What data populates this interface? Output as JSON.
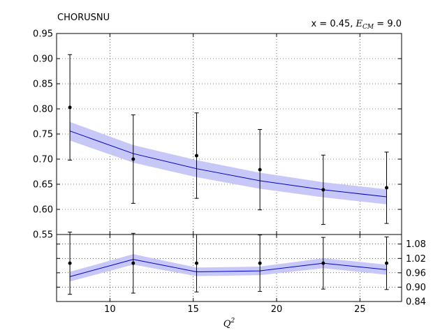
{
  "chart_data": [
    {
      "panel": "main",
      "type": "line",
      "title_left": "CHORUSNU",
      "title_right_text": "x = 0.45, ",
      "title_right_math": "E",
      "title_right_math_sub": "CM",
      "title_right_tail": " = 9.0",
      "xlabel": "Q",
      "xlabel_sup": "2",
      "xlim": [
        6.8,
        27.5
      ],
      "ylim": [
        0.55,
        0.95
      ],
      "xticks": [
        10,
        15,
        20,
        25
      ],
      "yticks": [
        0.55,
        0.6,
        0.65,
        0.7,
        0.75,
        0.8,
        0.85,
        0.9,
        0.95
      ],
      "yticklabels": [
        "0.55",
        "0.60",
        "0.65",
        "0.70",
        "0.75",
        "0.80",
        "0.85",
        "0.90",
        "0.95"
      ],
      "grid": true,
      "band_color": "#c8c8f8",
      "line_color": "#0000cc",
      "point_color": "#000000",
      "x": [
        7.6,
        11.4,
        15.2,
        19.0,
        22.8,
        26.6
      ],
      "data": [
        0.803,
        0.7,
        0.707,
        0.679,
        0.639,
        0.643
      ],
      "data_err": [
        0.105,
        0.088,
        0.085,
        0.08,
        0.069,
        0.071
      ],
      "theory": [
        0.756,
        0.711,
        0.681,
        0.657,
        0.639,
        0.625
      ],
      "theory_lower": [
        0.737,
        0.693,
        0.664,
        0.641,
        0.624,
        0.61
      ],
      "theory_upper": [
        0.774,
        0.728,
        0.698,
        0.673,
        0.654,
        0.64
      ]
    },
    {
      "panel": "ratio",
      "type": "line",
      "xlim": [
        6.8,
        27.5
      ],
      "ylim": [
        0.84,
        1.12
      ],
      "xticks": [
        10,
        15,
        20,
        25
      ],
      "xticklabels": [
        "10",
        "15",
        "20",
        "25"
      ],
      "yticks": [
        0.84,
        0.9,
        0.96,
        1.02,
        1.08
      ],
      "yticklabels": [
        "0.84",
        "0.90",
        "0.96",
        "1.02",
        "1.08"
      ],
      "grid": true,
      "x": [
        7.6,
        11.4,
        15.2,
        19.0,
        22.8,
        26.6
      ],
      "data": [
        1.0,
        1.0,
        1.0,
        1.0,
        1.0,
        1.0
      ],
      "data_err": [
        0.13,
        0.125,
        0.12,
        0.118,
        0.108,
        0.11
      ],
      "theory": [
        0.944,
        1.016,
        0.964,
        0.968,
        1.0,
        0.973
      ],
      "theory_lower": [
        0.924,
        0.994,
        0.946,
        0.95,
        0.979,
        0.952
      ],
      "theory_upper": [
        0.964,
        1.038,
        0.982,
        0.986,
        1.021,
        0.994
      ]
    }
  ]
}
